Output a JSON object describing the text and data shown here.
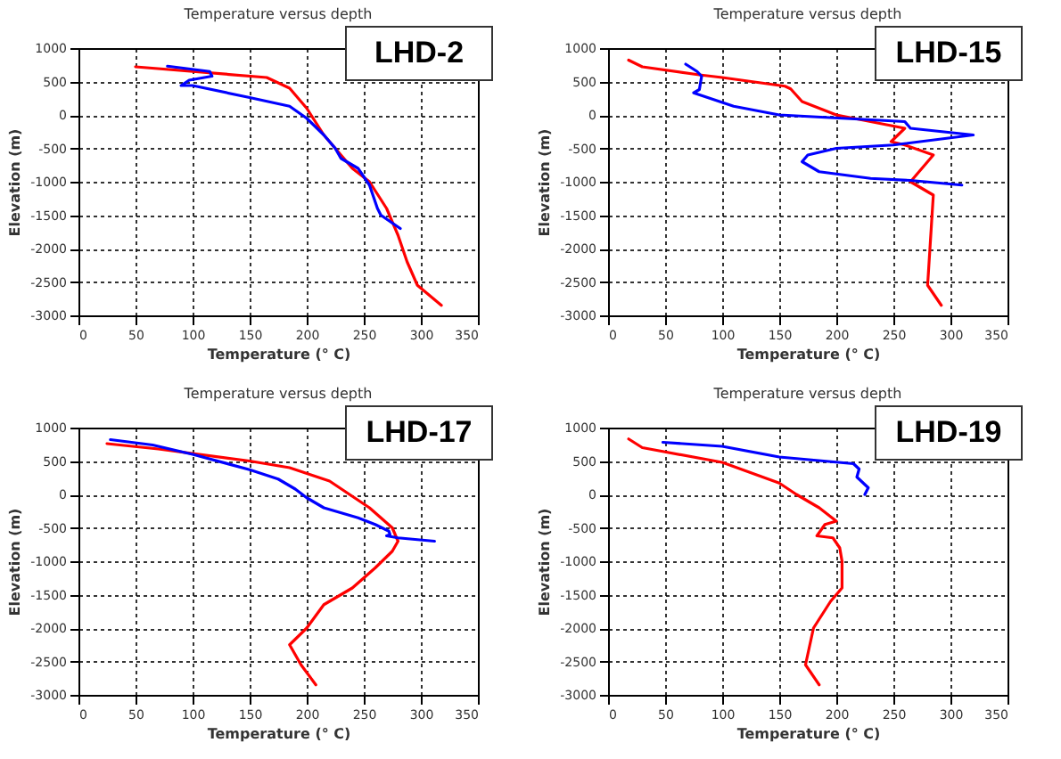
{
  "chart_data": [
    {
      "type": "line",
      "title": "Temperature versus depth",
      "xlabel": "Temperature (° C)",
      "ylabel": "Elevation (m)",
      "annotations": [
        "LHD-2"
      ],
      "xlim": [
        0,
        350
      ],
      "ylim": [
        -3000,
        1000
      ],
      "xticks": [
        0,
        50,
        100,
        150,
        200,
        250,
        300,
        350
      ],
      "yticks": [
        -3000,
        -2500,
        -2000,
        -1500,
        -1000,
        -500,
        0,
        500,
        1000
      ],
      "grid": true,
      "line_style": "solid",
      "series": [
        {
          "color": "#ff0000",
          "x": [
            50,
            165,
            185,
            200,
            215,
            240,
            255,
            270,
            280,
            288,
            297,
            318
          ],
          "values": [
            720,
            560,
            400,
            100,
            -300,
            -800,
            -1000,
            -1400,
            -1800,
            -2200,
            -2550,
            -2850
          ]
        },
        {
          "color": "#0000ff",
          "x": [
            78,
            115,
            117,
            97,
            90,
            100,
            150,
            185,
            200,
            215,
            225,
            230,
            245,
            255,
            262,
            265,
            282
          ],
          "values": [
            730,
            650,
            580,
            520,
            440,
            440,
            260,
            130,
            -50,
            -300,
            -500,
            -650,
            -800,
            -1050,
            -1400,
            -1500,
            -1700
          ]
        }
      ]
    },
    {
      "type": "line",
      "title": "Temperature versus depth",
      "xlabel": "Temperature (° C)",
      "ylabel": "Elevation (m)",
      "annotations": [
        "LHD-15"
      ],
      "xlim": [
        0,
        350
      ],
      "ylim": [
        -3000,
        1000
      ],
      "xticks": [
        0,
        50,
        100,
        150,
        200,
        250,
        300,
        350
      ],
      "yticks": [
        -3000,
        -2500,
        -2000,
        -1500,
        -1000,
        -500,
        0,
        500,
        1000
      ],
      "grid": true,
      "line_style": "solid",
      "series": [
        {
          "color": "#ff0000",
          "x": [
            18,
            30,
            80,
            100,
            155,
            160,
            170,
            200,
            260,
            248,
            260,
            285,
            265,
            285,
            280,
            292
          ],
          "values": [
            820,
            720,
            600,
            560,
            430,
            390,
            200,
            0,
            -200,
            -400,
            -450,
            -600,
            -1000,
            -1200,
            -2550,
            -2850
          ]
        },
        {
          "color": "#0000ff",
          "x": [
            68,
            78,
            82,
            80,
            75,
            110,
            150,
            260,
            265,
            320,
            250,
            200,
            175,
            170,
            185,
            230,
            265,
            310
          ],
          "values": [
            760,
            650,
            580,
            380,
            330,
            130,
            0,
            -100,
            -200,
            -300,
            -450,
            -500,
            -600,
            -700,
            -850,
            -950,
            -980,
            -1050
          ]
        }
      ]
    },
    {
      "type": "line",
      "title": "Temperature versus depth",
      "xlabel": "Temperature (° C)",
      "ylabel": "Elevation (m)",
      "annotations": [
        "LHD-17"
      ],
      "xlim": [
        0,
        350
      ],
      "ylim": [
        -3000,
        1000
      ],
      "xticks": [
        0,
        50,
        100,
        150,
        200,
        250,
        300,
        350
      ],
      "yticks": [
        -3000,
        -2500,
        -2000,
        -1500,
        -1000,
        -500,
        0,
        500,
        1000
      ],
      "grid": true,
      "line_style": "solid",
      "series": [
        {
          "color": "#ff0000",
          "x": [
            25,
            70,
            150,
            185,
            220,
            255,
            275,
            280,
            275,
            260,
            240,
            215,
            200,
            185,
            195,
            208
          ],
          "values": [
            760,
            680,
            500,
            400,
            200,
            -200,
            -500,
            -700,
            -850,
            -1100,
            -1400,
            -1650,
            -2000,
            -2250,
            -2550,
            -2850
          ]
        },
        {
          "color": "#0000ff",
          "x": [
            28,
            65,
            100,
            150,
            175,
            190,
            200,
            215,
            245,
            260,
            272,
            273,
            270,
            280,
            312
          ],
          "values": [
            820,
            740,
            600,
            370,
            230,
            80,
            -50,
            -200,
            -350,
            -450,
            -550,
            -600,
            -620,
            -650,
            -700
          ]
        }
      ]
    },
    {
      "type": "line",
      "title": "Temperature versus depth",
      "xlabel": "Temperature (° C)",
      "ylabel": "Elevation (m)",
      "annotations": [
        "LHD-19"
      ],
      "xlim": [
        0,
        350
      ],
      "ylim": [
        -3000,
        1000
      ],
      "xticks": [
        0,
        50,
        100,
        150,
        200,
        250,
        300,
        350
      ],
      "yticks": [
        -3000,
        -2500,
        -2000,
        -1500,
        -1000,
        -500,
        0,
        500,
        1000
      ],
      "grid": true,
      "line_style": "solid",
      "series": [
        {
          "color": "#ff0000",
          "x": [
            18,
            30,
            100,
            150,
            165,
            185,
            200,
            190,
            183,
            197,
            203,
            205,
            205,
            195,
            180,
            173,
            185
          ],
          "values": [
            830,
            700,
            480,
            170,
            0,
            -200,
            -400,
            -450,
            -620,
            -650,
            -800,
            -1000,
            -1400,
            -1600,
            -2000,
            -2550,
            -2850
          ]
        },
        {
          "color": "#0000ff",
          "x": [
            48,
            100,
            150,
            215,
            220,
            218,
            228,
            225
          ],
          "values": [
            780,
            720,
            560,
            460,
            380,
            260,
            100,
            0
          ]
        }
      ]
    }
  ]
}
